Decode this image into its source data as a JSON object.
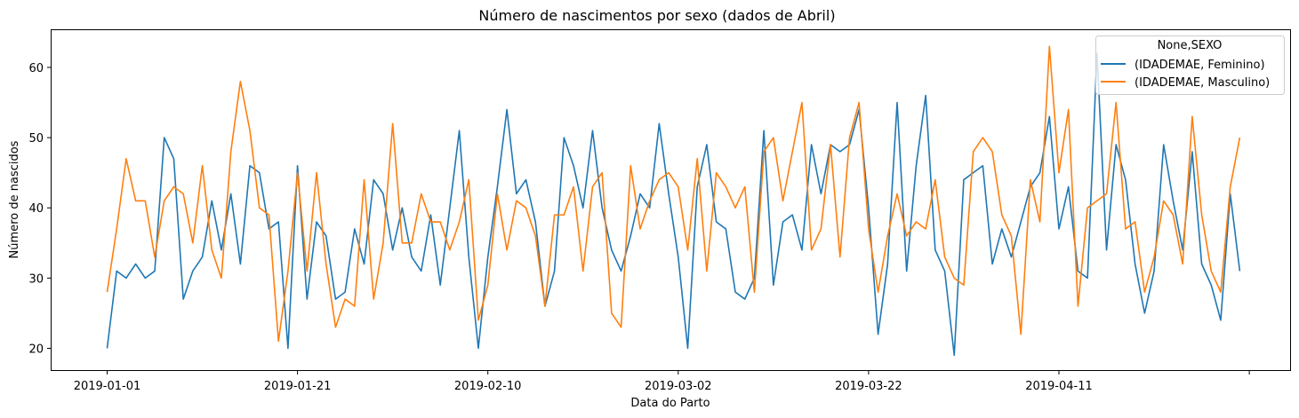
{
  "chart_data": {
    "type": "line",
    "title": "Número de nascimentos por sexo (dados de Abril)",
    "xlabel": "Data do Parto",
    "ylabel": "Número de nascidos",
    "x_start": "2019-01-01",
    "x_ticks": [
      "2019-01-01",
      "2019-01-21",
      "2019-02-10",
      "2019-03-02",
      "2019-03-22",
      "2019-04-11",
      ""
    ],
    "y_ticks": [
      20,
      30,
      40,
      50,
      60
    ],
    "ylim": [
      16.9,
      65.3
    ],
    "grid": false,
    "legend": {
      "title": "None,SEXO",
      "placement": "top-right"
    },
    "series": [
      {
        "name": "(IDADEMAE, Feminino)",
        "color": "#1f77b4",
        "values": [
          20,
          31,
          30,
          32,
          30,
          31,
          50,
          47,
          27,
          31,
          33,
          41,
          34,
          42,
          32,
          46,
          45,
          37,
          38,
          20,
          46,
          27,
          38,
          36,
          27,
          28,
          37,
          32,
          44,
          42,
          34,
          40,
          33,
          31,
          39,
          29,
          40,
          51,
          33,
          20,
          33,
          43,
          54,
          42,
          44,
          38,
          26,
          31,
          50,
          46,
          40,
          51,
          40,
          34,
          31,
          36,
          42,
          40,
          52,
          42,
          33,
          20,
          43,
          49,
          38,
          37,
          28,
          27,
          30,
          51,
          29,
          38,
          39,
          34,
          49,
          42,
          49,
          48,
          49,
          54,
          40,
          22,
          32,
          55,
          31,
          46,
          56,
          34,
          31,
          19,
          44,
          45,
          46,
          32,
          37,
          33,
          38,
          43,
          45,
          53,
          37,
          43,
          31,
          30,
          62,
          34,
          49,
          44,
          32,
          25,
          31,
          49,
          41,
          34,
          48,
          32,
          29,
          24,
          42,
          31
        ]
      },
      {
        "name": "(IDADEMAE, Masculino)",
        "color": "#ff7f0e",
        "values": [
          28,
          37,
          47,
          41,
          41,
          33,
          41,
          43,
          42,
          35,
          46,
          34,
          30,
          48,
          58,
          51,
          40,
          39,
          21,
          31,
          45,
          31,
          45,
          32,
          23,
          27,
          26,
          44,
          27,
          35,
          52,
          35,
          35,
          42,
          38,
          38,
          34,
          38,
          44,
          24,
          29,
          42,
          34,
          41,
          40,
          36,
          26,
          39,
          39,
          43,
          31,
          43,
          45,
          25,
          23,
          46,
          37,
          41,
          44,
          45,
          43,
          34,
          47,
          31,
          45,
          43,
          40,
          43,
          28,
          48,
          50,
          41,
          48,
          55,
          34,
          37,
          49,
          33,
          50,
          55,
          37,
          28,
          36,
          42,
          36,
          38,
          37,
          44,
          33,
          30,
          29,
          48,
          50,
          48,
          39,
          36,
          22,
          44,
          38,
          63,
          45,
          54,
          26,
          40,
          41,
          42,
          55,
          37,
          38,
          28,
          33,
          41,
          39,
          32,
          53,
          39,
          31,
          28,
          43,
          50
        ]
      }
    ]
  }
}
